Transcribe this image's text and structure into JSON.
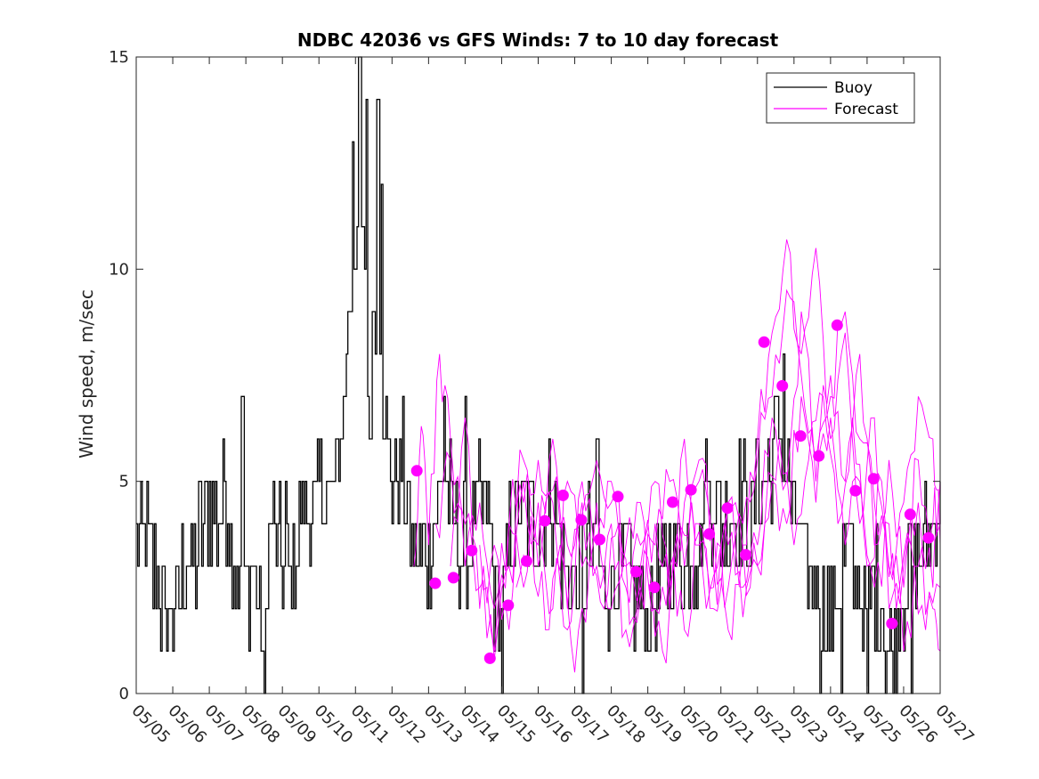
{
  "chart_data": {
    "type": "line",
    "title": "NDBC 42036 vs GFS Winds: 7 to 10 day forecast",
    "xlabel": "",
    "ylabel": "Wind speed, m/sec",
    "ylim": [
      0,
      15
    ],
    "yticks": [
      0,
      5,
      10,
      15
    ],
    "xlim_days": [
      5,
      27
    ],
    "xtick_labels": [
      "05/05",
      "05/06",
      "05/07",
      "05/08",
      "05/09",
      "05/10",
      "05/11",
      "05/12",
      "05/13",
      "05/14",
      "05/15",
      "05/16",
      "05/17",
      "05/18",
      "05/19",
      "05/20",
      "05/21",
      "05/22",
      "05/23",
      "05/24",
      "05/25",
      "05/26",
      "05/27"
    ],
    "legend": {
      "position": "top-right",
      "entries": [
        "Buoy",
        "Forecast"
      ]
    },
    "colors": {
      "buoy": "#000000",
      "forecast": "#ff00ff"
    },
    "buoy_anchors": [
      [
        5.0,
        3.5
      ],
      [
        5.2,
        4.0
      ],
      [
        5.4,
        3.0
      ],
      [
        5.6,
        2.5
      ],
      [
        5.8,
        1.5
      ],
      [
        6.0,
        2.0
      ],
      [
        6.2,
        2.5
      ],
      [
        6.4,
        3.5
      ],
      [
        6.6,
        3.0
      ],
      [
        6.8,
        4.0
      ],
      [
        7.0,
        4.5
      ],
      [
        7.2,
        4.0
      ],
      [
        7.4,
        5.0
      ],
      [
        7.6,
        3.5
      ],
      [
        7.8,
        2.5
      ],
      [
        8.0,
        2.5
      ],
      [
        8.2,
        3.0
      ],
      [
        8.4,
        2.0
      ],
      [
        8.5,
        1.0
      ],
      [
        8.6,
        3.5
      ],
      [
        8.8,
        4.0
      ],
      [
        9.0,
        3.0
      ],
      [
        9.2,
        2.5
      ],
      [
        9.4,
        3.5
      ],
      [
        9.6,
        4.5
      ],
      [
        9.8,
        4.0
      ],
      [
        10.0,
        4.5
      ],
      [
        10.2,
        5.0
      ],
      [
        10.4,
        4.5
      ],
      [
        10.6,
        6.0
      ],
      [
        10.8,
        9.0
      ],
      [
        11.0,
        10.5
      ],
      [
        11.1,
        12.0
      ],
      [
        11.2,
        10.0
      ],
      [
        11.3,
        8.0
      ],
      [
        11.4,
        6.0
      ],
      [
        11.5,
        9.5
      ],
      [
        11.6,
        10.0
      ],
      [
        11.7,
        8.0
      ],
      [
        11.8,
        6.5
      ],
      [
        12.0,
        5.0
      ],
      [
        12.2,
        5.5
      ],
      [
        12.4,
        4.5
      ],
      [
        12.6,
        3.5
      ],
      [
        12.8,
        3.0
      ],
      [
        13.0,
        3.5
      ],
      [
        13.2,
        4.5
      ],
      [
        13.4,
        5.0
      ],
      [
        13.6,
        4.5
      ],
      [
        13.8,
        3.5
      ],
      [
        14.0,
        3.5
      ],
      [
        14.2,
        4.0
      ],
      [
        14.4,
        4.5
      ],
      [
        14.6,
        4.0
      ],
      [
        14.8,
        2.5
      ],
      [
        15.0,
        1.5
      ],
      [
        15.2,
        3.5
      ],
      [
        15.4,
        4.5
      ],
      [
        15.6,
        4.5
      ],
      [
        15.8,
        4.0
      ],
      [
        16.0,
        4.0
      ],
      [
        16.2,
        4.0
      ],
      [
        16.4,
        4.5
      ],
      [
        16.6,
        3.5
      ],
      [
        16.8,
        3.0
      ],
      [
        17.0,
        2.5
      ],
      [
        17.2,
        3.0
      ],
      [
        17.4,
        3.5
      ],
      [
        17.6,
        3.0
      ],
      [
        17.8,
        2.5
      ],
      [
        18.0,
        2.5
      ],
      [
        18.2,
        3.0
      ],
      [
        18.4,
        3.0
      ],
      [
        18.6,
        2.5
      ],
      [
        18.8,
        2.0
      ],
      [
        19.0,
        2.0
      ],
      [
        19.2,
        2.5
      ],
      [
        19.4,
        2.5
      ],
      [
        19.6,
        3.5
      ],
      [
        19.8,
        3.5
      ],
      [
        20.0,
        3.0
      ],
      [
        20.2,
        3.5
      ],
      [
        20.4,
        3.5
      ],
      [
        20.6,
        4.5
      ],
      [
        20.8,
        4.5
      ],
      [
        21.0,
        4.0
      ],
      [
        21.2,
        4.0
      ],
      [
        21.4,
        4.5
      ],
      [
        21.6,
        4.5
      ],
      [
        21.8,
        4.0
      ],
      [
        22.0,
        4.5
      ],
      [
        22.2,
        5.0
      ],
      [
        22.4,
        5.5
      ],
      [
        22.6,
        6.5
      ],
      [
        22.8,
        5.0
      ],
      [
        23.0,
        4.0
      ],
      [
        23.2,
        3.5
      ],
      [
        23.4,
        3.0
      ],
      [
        23.6,
        2.5
      ],
      [
        23.8,
        2.0
      ],
      [
        24.0,
        2.0
      ],
      [
        24.2,
        2.5
      ],
      [
        24.4,
        3.5
      ],
      [
        24.6,
        3.0
      ],
      [
        24.8,
        2.5
      ],
      [
        25.0,
        2.0
      ],
      [
        25.2,
        2.5
      ],
      [
        25.4,
        2.0
      ],
      [
        25.6,
        1.0
      ],
      [
        25.8,
        1.5
      ],
      [
        26.0,
        2.5
      ],
      [
        26.2,
        3.5
      ],
      [
        26.4,
        3.0
      ],
      [
        26.6,
        3.5
      ],
      [
        26.8,
        4.0
      ],
      [
        27.0,
        4.5
      ]
    ],
    "buoy_spikes": [
      [
        7.9,
        7.0
      ],
      [
        8.5,
        0.0
      ],
      [
        9.1,
        5.0
      ],
      [
        10.9,
        13.0
      ],
      [
        11.1,
        15.0
      ],
      [
        11.3,
        14.0
      ],
      [
        11.6,
        14.0
      ],
      [
        11.7,
        12.0
      ],
      [
        12.3,
        7.0
      ],
      [
        13.4,
        7.0
      ],
      [
        14.0,
        7.0
      ],
      [
        15.0,
        0.0
      ],
      [
        16.3,
        6.0
      ],
      [
        17.2,
        0.0
      ],
      [
        17.6,
        6.0
      ],
      [
        20.6,
        6.0
      ],
      [
        22.0,
        6.0
      ],
      [
        22.7,
        8.0
      ],
      [
        23.7,
        0.0
      ],
      [
        24.3,
        0.0
      ],
      [
        25.0,
        0.0
      ],
      [
        25.5,
        0.0
      ],
      [
        26.2,
        0.0
      ]
    ],
    "forecast_dots": [
      [
        12.68,
        5.25
      ],
      [
        13.18,
        2.6
      ],
      [
        13.68,
        2.73
      ],
      [
        14.18,
        3.37
      ],
      [
        14.68,
        0.83
      ],
      [
        15.18,
        2.08
      ],
      [
        15.68,
        3.12
      ],
      [
        16.18,
        4.07
      ],
      [
        16.68,
        4.67
      ],
      [
        17.18,
        4.09
      ],
      [
        17.68,
        3.63
      ],
      [
        18.18,
        4.64
      ],
      [
        18.68,
        2.87
      ],
      [
        19.18,
        2.5
      ],
      [
        19.68,
        4.51
      ],
      [
        20.18,
        4.8
      ],
      [
        20.68,
        3.76
      ],
      [
        21.18,
        4.37
      ],
      [
        21.68,
        3.27
      ],
      [
        22.18,
        8.28
      ],
      [
        22.68,
        7.25
      ],
      [
        23.18,
        6.07
      ],
      [
        23.68,
        5.6
      ],
      [
        24.18,
        8.68
      ],
      [
        24.68,
        4.78
      ],
      [
        25.18,
        5.06
      ],
      [
        25.68,
        1.65
      ],
      [
        26.18,
        4.22
      ],
      [
        26.68,
        3.67
      ]
    ],
    "forecast_lines": [
      [
        [
          12.6,
          3.0
        ],
        [
          12.8,
          6.3
        ],
        [
          13.0,
          3.5
        ],
        [
          13.3,
          8.0
        ],
        [
          13.6,
          6.0
        ],
        [
          14.0,
          4.0
        ],
        [
          14.4,
          2.5
        ],
        [
          14.8,
          0.8
        ],
        [
          15.2,
          3.0
        ],
        [
          15.6,
          4.5
        ],
        [
          16.0,
          5.5
        ],
        [
          16.4,
          4.8
        ],
        [
          16.8,
          3.5
        ],
        [
          17.2,
          4.2
        ],
        [
          17.6,
          5.5
        ],
        [
          18.0,
          4.5
        ],
        [
          18.4,
          2.5
        ],
        [
          18.8,
          3.5
        ],
        [
          19.2,
          4.0
        ],
        [
          19.6,
          2.0
        ],
        [
          20.0,
          4.5
        ],
        [
          20.4,
          5.0
        ],
        [
          20.8,
          3.0
        ],
        [
          21.2,
          2.5
        ],
        [
          21.6,
          4.0
        ],
        [
          22.0,
          5.5
        ],
        [
          22.4,
          7.0
        ],
        [
          22.8,
          9.5
        ],
        [
          23.2,
          7.5
        ],
        [
          23.6,
          5.0
        ],
        [
          24.0,
          7.0
        ],
        [
          24.4,
          9.0
        ],
        [
          24.8,
          6.0
        ],
        [
          25.2,
          4.5
        ],
        [
          25.6,
          3.0
        ],
        [
          26.0,
          4.5
        ],
        [
          26.4,
          7.0
        ],
        [
          26.8,
          6.0
        ],
        [
          27.0,
          3.5
        ]
      ],
      [
        [
          13.2,
          4.0
        ],
        [
          13.6,
          5.5
        ],
        [
          14.0,
          3.0
        ],
        [
          14.4,
          4.5
        ],
        [
          14.8,
          2.0
        ],
        [
          15.2,
          4.0
        ],
        [
          15.6,
          5.5
        ],
        [
          16.0,
          3.0
        ],
        [
          16.4,
          4.5
        ],
        [
          16.8,
          1.5
        ],
        [
          17.2,
          5.0
        ],
        [
          17.6,
          3.5
        ],
        [
          18.0,
          5.0
        ],
        [
          18.4,
          3.0
        ],
        [
          18.8,
          2.5
        ],
        [
          19.2,
          3.5
        ],
        [
          19.6,
          5.0
        ],
        [
          20.0,
          3.0
        ],
        [
          20.4,
          5.5
        ],
        [
          20.8,
          4.0
        ],
        [
          21.2,
          1.5
        ],
        [
          21.6,
          3.5
        ],
        [
          22.0,
          6.0
        ],
        [
          22.4,
          8.5
        ],
        [
          22.8,
          10.7
        ],
        [
          23.2,
          8.0
        ],
        [
          23.6,
          10.5
        ],
        [
          24.0,
          6.0
        ],
        [
          24.4,
          8.5
        ],
        [
          24.8,
          4.0
        ],
        [
          25.2,
          6.5
        ],
        [
          25.6,
          2.0
        ],
        [
          26.0,
          3.0
        ],
        [
          26.4,
          5.5
        ],
        [
          26.8,
          4.0
        ],
        [
          27.0,
          5.0
        ]
      ],
      [
        [
          13.6,
          3.0
        ],
        [
          14.0,
          6.5
        ],
        [
          14.4,
          2.0
        ],
        [
          14.8,
          3.5
        ],
        [
          15.2,
          1.5
        ],
        [
          15.6,
          5.0
        ],
        [
          16.0,
          3.5
        ],
        [
          16.4,
          6.0
        ],
        [
          16.8,
          2.0
        ],
        [
          17.2,
          4.5
        ],
        [
          17.6,
          3.0
        ],
        [
          18.0,
          4.0
        ],
        [
          18.4,
          1.5
        ],
        [
          18.8,
          3.0
        ],
        [
          19.2,
          5.0
        ],
        [
          19.6,
          2.5
        ],
        [
          20.0,
          6.0
        ],
        [
          20.4,
          3.5
        ],
        [
          20.8,
          2.0
        ],
        [
          21.2,
          4.5
        ],
        [
          21.6,
          2.5
        ],
        [
          22.0,
          3.5
        ],
        [
          22.4,
          6.5
        ],
        [
          22.8,
          5.0
        ],
        [
          23.2,
          9.0
        ],
        [
          23.6,
          5.5
        ],
        [
          24.0,
          7.5
        ],
        [
          24.4,
          5.0
        ],
        [
          24.8,
          8.0
        ],
        [
          25.2,
          3.5
        ],
        [
          25.6,
          5.5
        ],
        [
          26.0,
          2.5
        ],
        [
          26.4,
          4.5
        ],
        [
          26.8,
          2.5
        ],
        [
          27.0,
          4.0
        ]
      ],
      [
        [
          14.4,
          3.5
        ],
        [
          14.8,
          1.0
        ],
        [
          15.2,
          4.0
        ],
        [
          15.6,
          2.5
        ],
        [
          16.0,
          4.5
        ],
        [
          16.4,
          2.0
        ],
        [
          16.8,
          5.0
        ],
        [
          17.2,
          3.0
        ],
        [
          17.6,
          4.5
        ],
        [
          18.0,
          2.0
        ],
        [
          18.4,
          3.5
        ],
        [
          18.8,
          4.5
        ],
        [
          19.2,
          2.0
        ],
        [
          19.6,
          3.0
        ],
        [
          20.0,
          1.5
        ],
        [
          20.4,
          4.0
        ],
        [
          20.8,
          2.5
        ],
        [
          21.2,
          3.5
        ],
        [
          21.6,
          1.8
        ],
        [
          22.0,
          3.0
        ],
        [
          22.4,
          5.0
        ],
        [
          22.8,
          4.0
        ],
        [
          23.2,
          7.0
        ],
        [
          23.6,
          4.5
        ],
        [
          24.0,
          6.5
        ],
        [
          24.4,
          3.5
        ],
        [
          24.8,
          5.0
        ],
        [
          25.2,
          2.5
        ],
        [
          25.6,
          4.0
        ],
        [
          26.0,
          1.0
        ],
        [
          26.4,
          3.0
        ],
        [
          26.8,
          2.0
        ],
        [
          27.0,
          1.0
        ]
      ],
      [
        [
          15.4,
          2.5
        ],
        [
          15.8,
          4.0
        ],
        [
          16.2,
          1.5
        ],
        [
          16.6,
          3.5
        ],
        [
          17.0,
          0.5
        ],
        [
          17.4,
          3.0
        ],
        [
          17.8,
          2.0
        ],
        [
          18.2,
          4.0
        ],
        [
          18.6,
          1.8
        ],
        [
          19.0,
          3.2
        ],
        [
          19.4,
          1.0
        ],
        [
          19.8,
          3.0
        ],
        [
          20.2,
          4.5
        ],
        [
          20.6,
          2.0
        ],
        [
          21.0,
          3.5
        ],
        [
          21.4,
          4.5
        ],
        [
          21.8,
          2.5
        ],
        [
          22.2,
          4.0
        ],
        [
          22.6,
          6.0
        ],
        [
          23.0,
          3.5
        ],
        [
          23.4,
          5.5
        ],
        [
          23.8,
          7.0
        ],
        [
          24.2,
          4.0
        ],
        [
          24.6,
          6.5
        ],
        [
          25.0,
          3.0
        ],
        [
          25.4,
          5.0
        ],
        [
          25.8,
          2.0
        ],
        [
          26.2,
          3.5
        ],
        [
          26.6,
          1.5
        ],
        [
          27.0,
          2.5
        ]
      ]
    ]
  }
}
